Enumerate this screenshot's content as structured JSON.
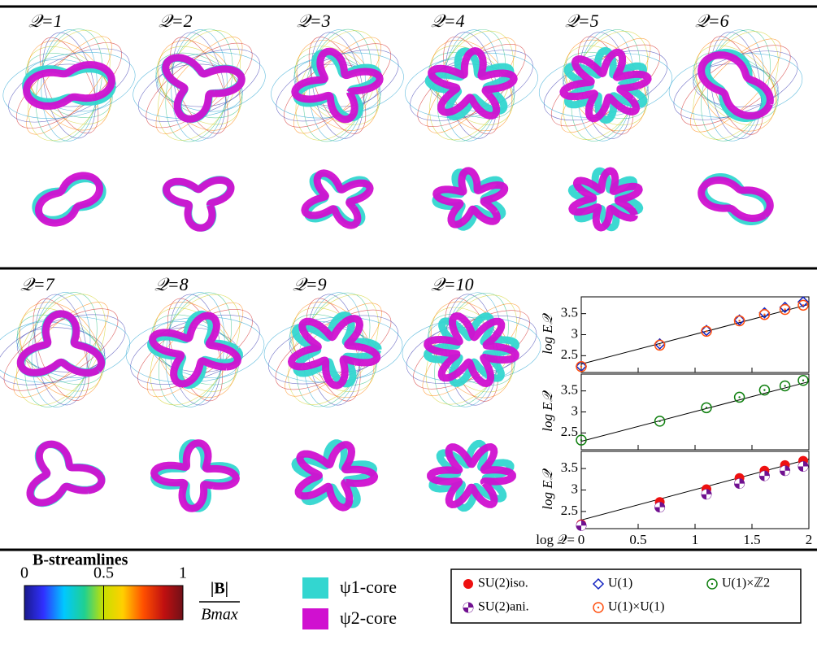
{
  "panels": {
    "labels": [
      "𝒬=1",
      "𝒬=2",
      "𝒬=3",
      "𝒬=4",
      "𝒬=5",
      "𝒬=6",
      "𝒬=7",
      "𝒬=8",
      "𝒬=9",
      "𝒬=10"
    ]
  },
  "colorbar": {
    "title": "B-streamlines",
    "ticks": [
      0,
      0.5,
      1
    ],
    "numerator": "|B|",
    "denominator": "Bmax"
  },
  "cores": [
    {
      "name": "ψ1-core",
      "color": "#33d6d0"
    },
    {
      "name": "ψ2-core",
      "color": "#d010d0"
    }
  ],
  "chart_data": [
    {
      "type": "scatter",
      "ylabel": "log E𝒬",
      "x": [
        0,
        0.69,
        1.1,
        1.39,
        1.61,
        1.79,
        1.95
      ],
      "xlim": [
        0,
        2
      ],
      "xticks": [
        0,
        0.5,
        1,
        1.5,
        2
      ],
      "ylim": [
        2.1,
        3.9
      ],
      "yticks": [
        {
          "value": 2.5,
          "label": "2.5"
        },
        3,
        {
          "value": 3.5,
          "label": "3.5"
        }
      ],
      "fit": {
        "x": [
          0,
          2
        ],
        "values": [
          2.3,
          3.72
        ]
      },
      "series": [
        {
          "name": "U(1)",
          "color": "#1020c0",
          "marker": "diamond",
          "values": [
            2.25,
            2.78,
            3.1,
            3.35,
            3.52,
            3.65,
            3.78
          ]
        },
        {
          "name": "U(1)×U(1)",
          "color": "#ff5010",
          "marker": "dotted-circle",
          "values": [
            2.24,
            2.75,
            3.08,
            3.33,
            3.48,
            3.6,
            3.7
          ]
        }
      ]
    },
    {
      "type": "scatter",
      "ylabel": "log E𝒬",
      "x": [
        0,
        0.69,
        1.1,
        1.39,
        1.61,
        1.79,
        1.95
      ],
      "xlim": [
        0,
        2
      ],
      "xticks": [
        0,
        0.5,
        1,
        1.5,
        2
      ],
      "ylim": [
        2.1,
        3.9
      ],
      "yticks": [
        {
          "value": 2.5,
          "label": "2.5"
        },
        3,
        {
          "value": 3.5,
          "label": "3.5"
        }
      ],
      "fit": {
        "x": [
          0,
          2
        ],
        "values": [
          2.3,
          3.72
        ]
      },
      "series": [
        {
          "name": "U(1)×ℤ2",
          "color": "#108010",
          "marker": "dotted-circle",
          "values": [
            2.33,
            2.78,
            3.1,
            3.35,
            3.52,
            3.62,
            3.75
          ]
        }
      ]
    },
    {
      "type": "scatter",
      "ylabel": "log E𝒬",
      "xlabel": "log 𝒬=",
      "x": [
        0,
        0.69,
        1.1,
        1.39,
        1.61,
        1.79,
        1.95
      ],
      "xlim": [
        0,
        2
      ],
      "xticks": [
        0,
        {
          "value": 0.5,
          "label": "0.5"
        },
        1,
        {
          "value": 1.5,
          "label": "1.5"
        },
        2
      ],
      "ylim": [
        2.1,
        3.9
      ],
      "yticks": [
        {
          "value": 2.5,
          "label": "2.5"
        },
        3,
        {
          "value": 3.5,
          "label": "3.5"
        }
      ],
      "fit": {
        "x": [
          0,
          2
        ],
        "values": [
          2.3,
          3.72
        ]
      },
      "series": [
        {
          "name": "SU(2)iso.",
          "color": "#ee1010",
          "marker": "filled-circle",
          "values": [
            2.2,
            2.72,
            3.02,
            3.28,
            3.45,
            3.58,
            3.68
          ]
        },
        {
          "name": "SU(2)ani.",
          "color": "#701090",
          "marker": "half-circle",
          "values": [
            2.17,
            2.6,
            2.9,
            3.15,
            3.33,
            3.45,
            3.55
          ]
        }
      ]
    }
  ]
}
